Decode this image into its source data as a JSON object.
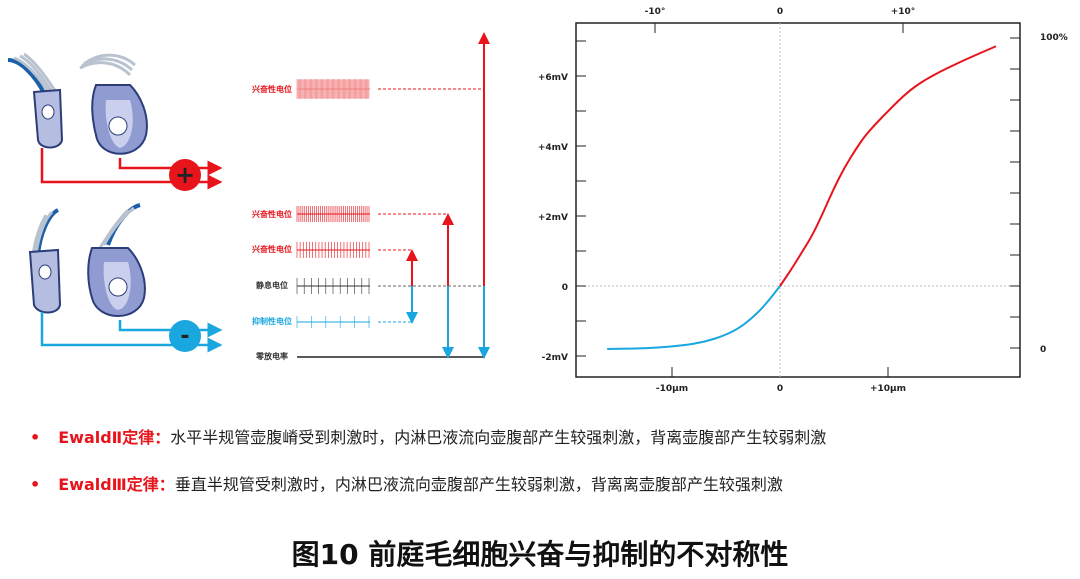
{
  "diagram": {
    "signs": {
      "plus": "+",
      "minus": "-"
    },
    "potential_labels": [
      "兴奋性电位",
      "兴奋性电位",
      "兴奋性电位",
      "静息电位",
      "抑制性电位",
      "零放电率"
    ],
    "colors": {
      "excitatory": "#e8141c",
      "inhibitory": "#1aa7e0",
      "resting": "#333333"
    }
  },
  "chart_data": {
    "type": "line",
    "x_ticks_bottom": [
      "-10μm",
      "0",
      "+10μm"
    ],
    "x_ticks_top": [
      "-10°",
      "0",
      "+10°"
    ],
    "y_ticks_left": [
      "+6mV",
      "+4mV",
      "+2mV",
      "0",
      "-2mV"
    ],
    "y_ticks_right": [
      "100%",
      "0"
    ],
    "xlim": [
      -19,
      22
    ],
    "ylim": [
      -2.6,
      7.6
    ],
    "grid": false,
    "series": [
      {
        "color": "#1aa7e0",
        "x": [
          -16,
          -12,
          -9,
          -7,
          -5,
          -3.5,
          -2,
          -1,
          0
        ],
        "y": [
          -1.8,
          -1.78,
          -1.7,
          -1.6,
          -1.4,
          -1.15,
          -0.75,
          -0.4,
          0
        ]
      },
      {
        "color": "#e8141c",
        "x": [
          0,
          1,
          2,
          3,
          4,
          5,
          6,
          7,
          8,
          10,
          12,
          14,
          17,
          20
        ],
        "y": [
          0,
          0.45,
          0.95,
          1.45,
          2.1,
          2.8,
          3.4,
          3.9,
          4.35,
          5.0,
          5.6,
          6.0,
          6.45,
          6.85
        ]
      }
    ]
  },
  "text": {
    "laws": [
      {
        "bullet": "•",
        "name": "EwaldⅡ定律：",
        "desc": "水平半规管壶腹嵴受到刺激时，内淋巴液流向壶腹部产生较强刺激，背离壶腹部产生较弱刺激"
      },
      {
        "bullet": "•",
        "name": "EwaldⅢ定律：",
        "desc": "垂直半规管受刺激时，内淋巴液流向壶腹部产生较弱刺激，背离离壶腹部产生较强刺激"
      }
    ],
    "caption": "图10  前庭毛细胞兴奋与抑制的不对称性"
  }
}
